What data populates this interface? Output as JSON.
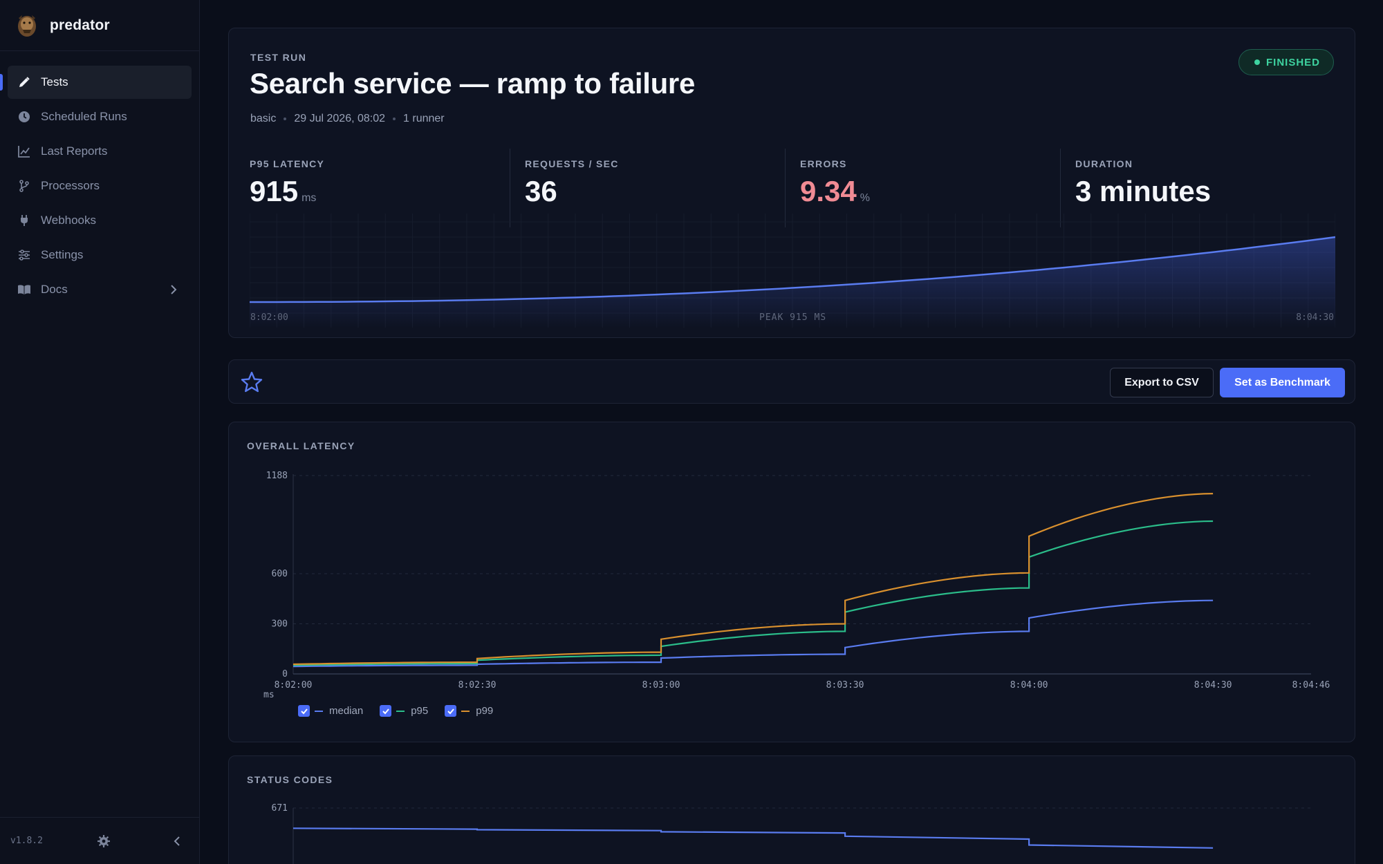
{
  "app": {
    "name": "predator",
    "version": "v1.8.2"
  },
  "nav": [
    {
      "label": "Tests",
      "icon": "pen-icon",
      "active": true
    },
    {
      "label": "Scheduled Runs",
      "icon": "clock-icon"
    },
    {
      "label": "Last Reports",
      "icon": "chart-line-icon"
    },
    {
      "label": "Processors",
      "icon": "branch-icon"
    },
    {
      "label": "Webhooks",
      "icon": "plug-icon"
    },
    {
      "label": "Settings",
      "icon": "sliders-icon"
    },
    {
      "label": "Docs",
      "icon": "book-icon"
    }
  ],
  "run": {
    "eyebrow": "TEST RUN",
    "title": "Search service — ramp to failure",
    "type": "basic",
    "date": "29 Jul 2026, 08:02",
    "runners": "1 runner",
    "status": "FINISHED",
    "status_color": "#3ed3a0"
  },
  "stats": [
    {
      "label": "P95 LATENCY",
      "value": "915",
      "unit": "ms"
    },
    {
      "label": "REQUESTS / SEC",
      "value": "36",
      "unit": ""
    },
    {
      "label": "ERRORS",
      "value": "9.34",
      "unit": "%",
      "color": "#f08b94"
    },
    {
      "label": "DURATION",
      "value": "3 minutes",
      "unit": ""
    }
  ],
  "sparkline": {
    "start": "8:02:00",
    "peak": "PEAK 915 MS",
    "end": "8:04:30",
    "color": "#5a7cf0"
  },
  "toolbar": {
    "export": "Export to CSV",
    "benchmark": "Set as Benchmark",
    "accent": "#4b6cf7"
  },
  "latency": {
    "title": "OVERALL LATENCY",
    "unit": "ms",
    "chart_data": {
      "type": "line",
      "x_ticks": [
        "8:02:00",
        "8:02:30",
        "8:03:00",
        "8:03:30",
        "8:04:00",
        "8:04:30",
        "8:04:46"
      ],
      "y_ticks": [
        0,
        300,
        600,
        1188
      ],
      "ylim": [
        0,
        1188
      ],
      "ylabel": "ms",
      "grid": true,
      "legend": "bottom-left",
      "series": [
        {
          "name": "median",
          "color": "#5a7cf0",
          "points": [
            [
              0,
              45
            ],
            [
              30,
              52
            ],
            [
              30,
              58
            ],
            [
              60,
              70
            ],
            [
              60,
              95
            ],
            [
              90,
              118
            ],
            [
              90,
              158
            ],
            [
              120,
              255
            ],
            [
              120,
              335
            ],
            [
              150,
              440
            ]
          ]
        },
        {
          "name": "p95",
          "color": "#2bbd8a",
          "points": [
            [
              0,
              52
            ],
            [
              30,
              62
            ],
            [
              30,
              82
            ],
            [
              60,
              112
            ],
            [
              60,
              165
            ],
            [
              90,
              255
            ],
            [
              90,
              370
            ],
            [
              120,
              515
            ],
            [
              120,
              700
            ],
            [
              150,
              915
            ]
          ]
        },
        {
          "name": "p99",
          "color": "#d9902e",
          "points": [
            [
              0,
              58
            ],
            [
              30,
              70
            ],
            [
              30,
              92
            ],
            [
              60,
              130
            ],
            [
              60,
              208
            ],
            [
              90,
              300
            ],
            [
              90,
              440
            ],
            [
              120,
              605
            ],
            [
              120,
              825
            ],
            [
              150,
              1080
            ]
          ]
        }
      ]
    }
  },
  "status_codes": {
    "title": "STATUS CODES",
    "chart_data": {
      "type": "line",
      "y_ticks": [
        671
      ],
      "series": [
        {
          "name": "",
          "color": "#5a7cf0",
          "points": [
            [
              0,
              602
            ],
            [
              30,
              599
            ],
            [
              30,
              597
            ],
            [
              60,
              594
            ],
            [
              60,
              590
            ],
            [
              90,
              586
            ],
            [
              90,
              575
            ],
            [
              120,
              565
            ],
            [
              120,
              545
            ],
            [
              150,
              535
            ]
          ]
        }
      ]
    }
  }
}
